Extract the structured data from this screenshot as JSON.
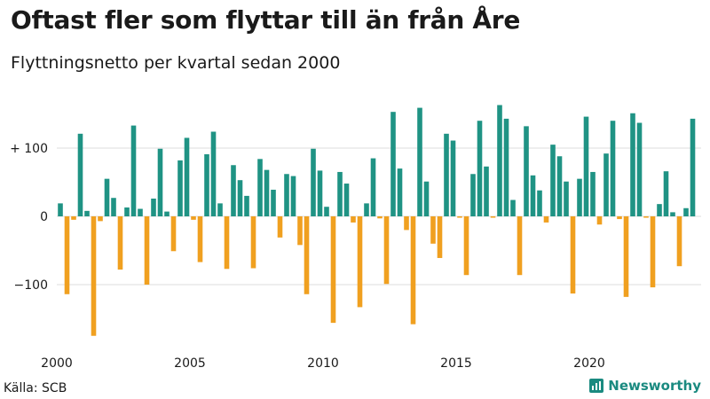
{
  "header": {
    "title": "Oftast fler som flyttar till än från Åre",
    "subtitle": "Flyttningsnetto per kvartal sedan 2000"
  },
  "footer": {
    "source": "Källa: SCB",
    "brand": "Newsworthy"
  },
  "colors": {
    "positive": "#1f9384",
    "negative": "#f0a020",
    "grid": "#dddddd"
  },
  "chart_data": {
    "type": "bar",
    "title": "Oftast fler som flyttar till än från Åre",
    "subtitle": "Flyttningsnetto per kvartal sedan 2000",
    "xlabel": "",
    "ylabel": "",
    "ylim": [
      -180,
      170
    ],
    "yticks": [
      {
        "value": 100,
        "label": "+ 100"
      },
      {
        "value": 0,
        "label": "0"
      },
      {
        "value": -100,
        "label": "−100"
      }
    ],
    "xticks": [
      {
        "year": 2000,
        "label": "2000"
      },
      {
        "year": 2005,
        "label": "2005"
      },
      {
        "year": 2010,
        "label": "2010"
      },
      {
        "year": 2015,
        "label": "2015"
      },
      {
        "year": 2020,
        "label": "2020"
      }
    ],
    "start_year": 2000,
    "values": [
      19,
      -114,
      -5,
      121,
      8,
      -175,
      -7,
      55,
      27,
      -78,
      13,
      133,
      11,
      -100,
      26,
      99,
      7,
      -51,
      82,
      115,
      -5,
      -67,
      91,
      124,
      19,
      -77,
      75,
      53,
      30,
      -76,
      84,
      68,
      39,
      -31,
      62,
      59,
      -42,
      -114,
      99,
      67,
      14,
      -156,
      65,
      48,
      -9,
      -133,
      19,
      85,
      -3,
      -99,
      153,
      70,
      -20,
      -158,
      159,
      51,
      -40,
      -61,
      121,
      111,
      -2,
      -86,
      62,
      140,
      73,
      -2,
      163,
      143,
      24,
      -86,
      132,
      60,
      38,
      -9,
      105,
      88,
      51,
      -113,
      55,
      146,
      65,
      -12,
      92,
      140,
      -4,
      -118,
      151,
      137,
      -2,
      -104,
      18,
      66,
      6,
      -73,
      12,
      143
    ]
  }
}
